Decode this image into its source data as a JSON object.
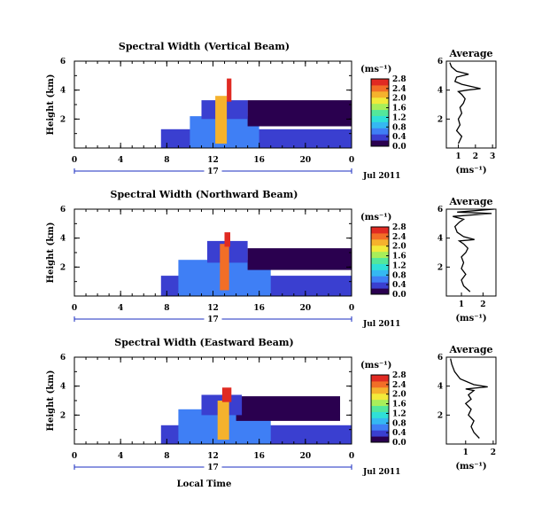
{
  "colors": {
    "colormap": [
      "#2a004f",
      "#3a3fd0",
      "#3f7ff5",
      "#35b8f2",
      "#2fe0d7",
      "#53e79b",
      "#a8ee5a",
      "#f2ea3a",
      "#f5b22d",
      "#f26e27",
      "#e02a22"
    ]
  },
  "chart_data": [
    {
      "type": "heatmap",
      "title": "Spectral Width (Vertical Beam)",
      "xlabel": "",
      "ylabel": "Height (km)",
      "xlim": [
        0,
        24
      ],
      "ylim": [
        0,
        6
      ],
      "xticks": [
        "0",
        "4",
        "8",
        "12",
        "16",
        "20",
        "0"
      ],
      "yticks": [
        "2",
        "4",
        "6"
      ],
      "date_day": "17",
      "date_label": "Jul 2011",
      "colorbar": {
        "unit": "(ms⁻¹)",
        "ticks": [
          "0.0",
          "0.4",
          "0.8",
          "1.2",
          "1.6",
          "2.0",
          "2.4",
          "2.8"
        ],
        "range": [
          0,
          2.8
        ]
      },
      "regions": [
        {
          "t0": 7.5,
          "t1": 24,
          "h0": 0.0,
          "h1": 1.3,
          "level": 0.5
        },
        {
          "t0": 10,
          "t1": 16,
          "h0": 0.0,
          "h1": 2.2,
          "level": 0.6
        },
        {
          "t0": 15,
          "t1": 24,
          "h0": 1.5,
          "h1": 3.3,
          "level": 0.25
        },
        {
          "t0": 11,
          "t1": 15,
          "h0": 2.0,
          "h1": 3.3,
          "level": 0.45
        },
        {
          "t0": 12.2,
          "t1": 13.2,
          "h0": 0.3,
          "h1": 3.6,
          "level": 2.2
        },
        {
          "t0": 13.2,
          "t1": 13.6,
          "h0": 3.2,
          "h1": 4.8,
          "level": 2.8
        }
      ],
      "average": {
        "title": "Average",
        "xlabel": "(ms⁻¹)",
        "xlim": [
          0.3,
          3.2
        ],
        "ylim": [
          0,
          6
        ],
        "xticks": [
          "1",
          "2",
          "3"
        ],
        "yticks": [
          "2",
          "4",
          "6"
        ],
        "x": [
          1.0,
          1.2,
          0.9,
          1.1,
          1.0,
          1.2,
          1.1,
          1.3,
          1.4,
          1.2,
          1.0,
          1.5,
          2.3,
          1.2,
          0.8,
          0.9,
          1.6,
          0.9,
          0.6,
          0.5
        ],
        "y": [
          0.3,
          0.8,
          1.2,
          1.6,
          2.0,
          2.4,
          2.8,
          3.1,
          3.4,
          3.7,
          3.9,
          4.0,
          4.1,
          4.4,
          4.6,
          4.9,
          5.1,
          5.3,
          5.6,
          5.9
        ]
      }
    },
    {
      "type": "heatmap",
      "title": "Spectral Width (Northward Beam)",
      "xlabel": "",
      "ylabel": "Height (km)",
      "xlim": [
        0,
        24
      ],
      "ylim": [
        0,
        6
      ],
      "xticks": [
        "0",
        "4",
        "8",
        "12",
        "16",
        "20",
        "0"
      ],
      "yticks": [
        "2",
        "4",
        "6"
      ],
      "date_day": "17",
      "date_label": "Jul 2011",
      "colorbar": {
        "unit": "(ms⁻¹)",
        "ticks": [
          "0.0",
          "0.4",
          "0.8",
          "1.2",
          "1.6",
          "2.0",
          "2.4",
          "2.8"
        ],
        "range": [
          0,
          2.8
        ]
      },
      "regions": [
        {
          "t0": 7.5,
          "t1": 24,
          "h0": 0.0,
          "h1": 1.4,
          "level": 0.5
        },
        {
          "t0": 9,
          "t1": 17,
          "h0": 0.0,
          "h1": 2.5,
          "level": 0.55
        },
        {
          "t0": 15,
          "t1": 24,
          "h0": 1.8,
          "h1": 3.3,
          "level": 0.25
        },
        {
          "t0": 11.5,
          "t1": 15,
          "h0": 2.3,
          "h1": 3.8,
          "level": 0.4
        },
        {
          "t0": 12.6,
          "t1": 13.4,
          "h0": 0.4,
          "h1": 3.6,
          "level": 2.3
        },
        {
          "t0": 13.0,
          "t1": 13.5,
          "h0": 3.4,
          "h1": 4.4,
          "level": 2.7
        }
      ],
      "average": {
        "title": "Average",
        "xlabel": "(ms⁻¹)",
        "xlim": [
          0.3,
          2.6
        ],
        "ylim": [
          0,
          6
        ],
        "xticks": [
          "1",
          "2"
        ],
        "yticks": [
          "2",
          "4",
          "6"
        ],
        "x": [
          1.4,
          1.1,
          1.0,
          1.2,
          1.0,
          1.1,
          1.0,
          1.2,
          1.3,
          1.1,
          0.9,
          1.6,
          1.1,
          0.8,
          0.7,
          0.9,
          1.1,
          0.6,
          2.4,
          0.8,
          2.5
        ],
        "y": [
          0.3,
          0.7,
          1.1,
          1.5,
          1.9,
          2.3,
          2.7,
          3.0,
          3.3,
          3.6,
          3.8,
          3.9,
          4.1,
          4.4,
          4.8,
          5.1,
          5.3,
          5.5,
          5.7,
          5.8,
          6.0
        ]
      }
    },
    {
      "type": "heatmap",
      "title": "Spectral Width (Eastward Beam)",
      "xlabel": "Local Time",
      "ylabel": "Height (km)",
      "xlim": [
        0,
        24
      ],
      "ylim": [
        0,
        6
      ],
      "xticks": [
        "0",
        "4",
        "8",
        "12",
        "16",
        "20",
        "0"
      ],
      "yticks": [
        "2",
        "4",
        "6"
      ],
      "date_day": "17",
      "date_label": "Jul 2011",
      "colorbar": {
        "unit": "(ms⁻¹)",
        "ticks": [
          "0.0",
          "0.4",
          "0.8",
          "1.2",
          "1.6",
          "2.0",
          "2.4",
          "2.8"
        ],
        "range": [
          0,
          2.8
        ]
      },
      "regions": [
        {
          "t0": 7.5,
          "t1": 24,
          "h0": 0.0,
          "h1": 1.3,
          "level": 0.5
        },
        {
          "t0": 9,
          "t1": 17,
          "h0": 0.0,
          "h1": 2.4,
          "level": 0.6
        },
        {
          "t0": 14,
          "t1": 23,
          "h0": 1.6,
          "h1": 3.3,
          "level": 0.25
        },
        {
          "t0": 11,
          "t1": 14.5,
          "h0": 2.0,
          "h1": 3.4,
          "level": 0.45
        },
        {
          "t0": 12.4,
          "t1": 13.4,
          "h0": 0.3,
          "h1": 3.0,
          "level": 2.2
        },
        {
          "t0": 12.8,
          "t1": 13.6,
          "h0": 2.9,
          "h1": 3.9,
          "level": 2.7
        }
      ],
      "average": {
        "title": "Average",
        "xlabel": "(ms⁻¹)",
        "xlim": [
          0.3,
          2.1
        ],
        "ylim": [
          0,
          6
        ],
        "xticks": [
          "1",
          "2"
        ],
        "yticks": [
          "2",
          "4",
          "6"
        ],
        "x": [
          1.5,
          1.3,
          1.2,
          1.3,
          1.1,
          1.2,
          1.0,
          1.2,
          1.1,
          1.3,
          1.0,
          1.8,
          1.3,
          0.8,
          0.6,
          0.5,
          0.45
        ],
        "y": [
          0.4,
          0.8,
          1.2,
          1.6,
          2.0,
          2.4,
          2.8,
          3.1,
          3.4,
          3.7,
          3.8,
          3.95,
          4.1,
          4.5,
          5.0,
          5.5,
          5.9
        ]
      }
    }
  ]
}
